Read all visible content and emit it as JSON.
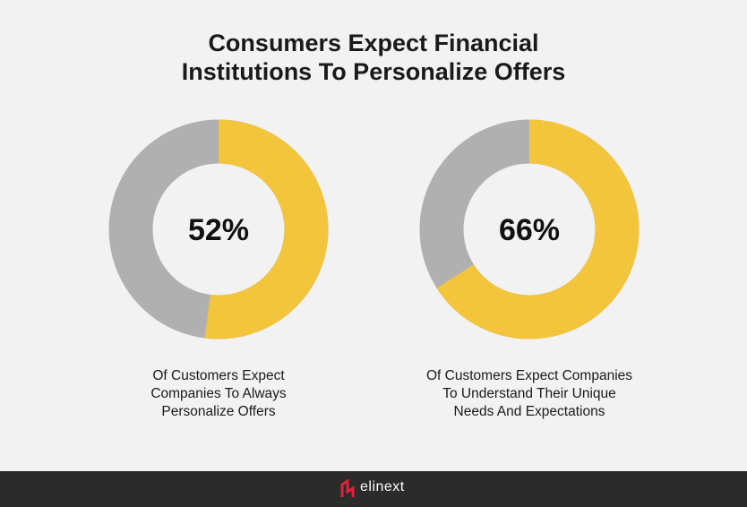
{
  "title": "Consumers Expect Financial Institutions To Personalize Offers",
  "chart_data": [
    {
      "type": "donut",
      "values": [
        52
      ],
      "value_labels": [
        "52%"
      ],
      "color": "#f2c53d",
      "track_color": "#b0b0b0",
      "caption": "Of Customers Expect Companies To Always Personalize Offers"
    },
    {
      "type": "donut",
      "values": [
        66
      ],
      "value_labels": [
        "66%"
      ],
      "color": "#f2c53d",
      "track_color": "#b0b0b0",
      "caption": "Of Customers Expect Companies To Understand Their Unique Needs And Expectations"
    }
  ],
  "footer": {
    "brand": "elinext"
  }
}
